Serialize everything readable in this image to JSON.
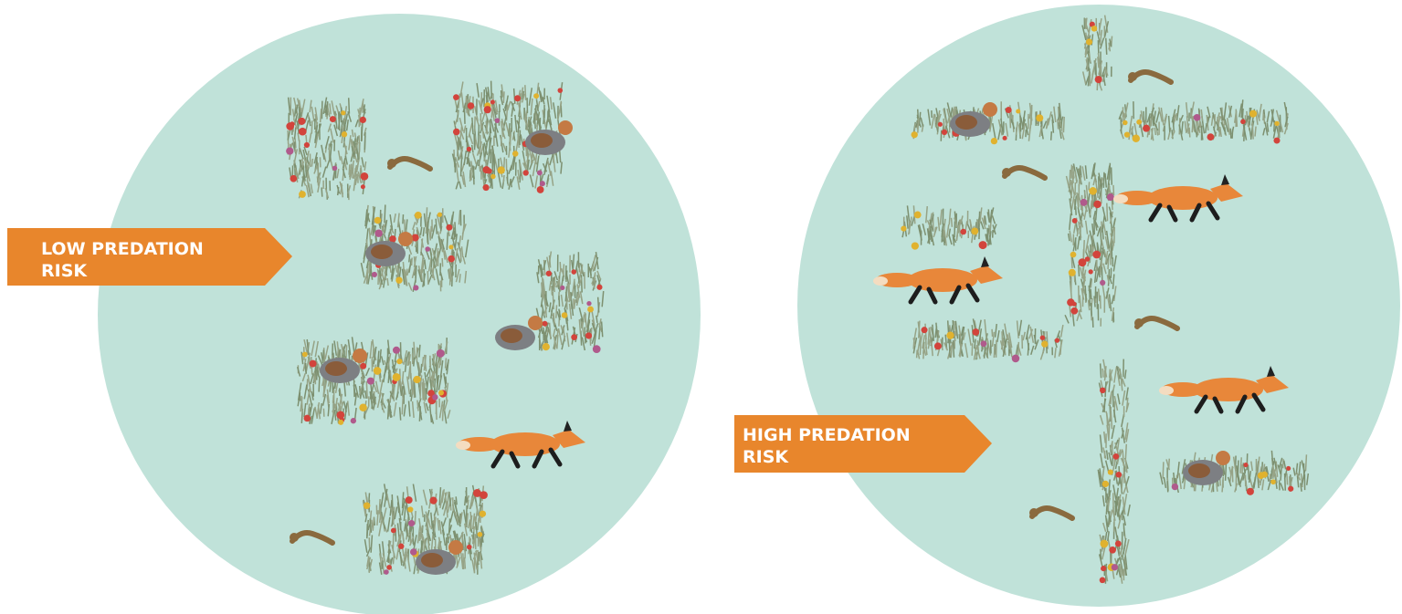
{
  "panels": [
    {
      "label": {
        "lines": [
          "LOW PREDATION",
          "RISK"
        ]
      }
    },
    {
      "label": {
        "lines": [
          "HIGH PREDATION",
          "RISK"
        ]
      }
    }
  ]
}
